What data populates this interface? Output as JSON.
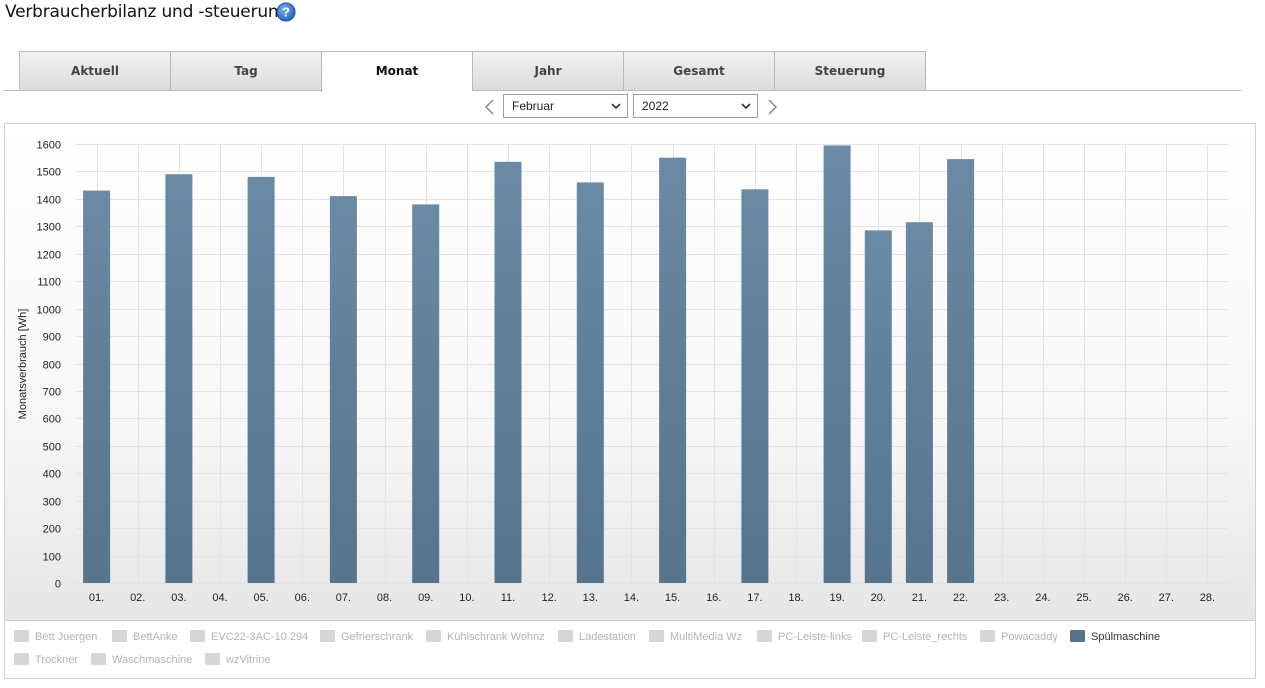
{
  "header": {
    "title": "Verbraucherbilanz und -steuerung",
    "help_icon": "question-circle-icon"
  },
  "tabs": [
    {
      "label": "Aktuell",
      "active": false
    },
    {
      "label": "Tag",
      "active": false
    },
    {
      "label": "Monat",
      "active": true
    },
    {
      "label": "Jahr",
      "active": false
    },
    {
      "label": "Gesamt",
      "active": false
    },
    {
      "label": "Steuerung",
      "active": false
    }
  ],
  "period": {
    "month": "Februar",
    "year": "2022",
    "prev_icon": "chevron-left-icon",
    "next_icon": "chevron-right-icon"
  },
  "chart_data": {
    "type": "bar",
    "ylabel": "Monatsverbrauch [Wh]",
    "ylim": [
      0,
      1600
    ],
    "yticks": [
      0,
      100,
      200,
      300,
      400,
      500,
      600,
      700,
      800,
      900,
      1000,
      1100,
      1200,
      1300,
      1400,
      1500,
      1600
    ],
    "grid": true,
    "bar_color": "#55748d",
    "categories": [
      "01.",
      "02.",
      "03.",
      "04.",
      "05.",
      "06.",
      "07.",
      "08.",
      "09.",
      "10.",
      "11.",
      "12.",
      "13.",
      "14.",
      "15.",
      "16.",
      "17.",
      "18.",
      "19.",
      "20.",
      "21.",
      "22.",
      "23.",
      "24.",
      "25.",
      "26.",
      "27.",
      "28."
    ],
    "series": [
      {
        "name": "Spülmaschine",
        "values": [
          1430,
          0,
          1490,
          0,
          1480,
          0,
          1410,
          0,
          1380,
          0,
          1535,
          0,
          1460,
          0,
          1550,
          0,
          1435,
          0,
          1595,
          1285,
          1315,
          1545,
          0,
          0,
          0,
          0,
          0,
          0
        ]
      }
    ]
  },
  "legend": {
    "items": [
      {
        "label": "Bett Juergen",
        "active": false
      },
      {
        "label": "BettAnke",
        "active": false
      },
      {
        "label": "EVC22-3AC-10 294",
        "active": false
      },
      {
        "label": "Gefrierschrank",
        "active": false
      },
      {
        "label": "Kühlschrank Wohnz",
        "active": false
      },
      {
        "label": "Ladestation",
        "active": false
      },
      {
        "label": "MultiMedia Wz",
        "active": false
      },
      {
        "label": "PC-Leiste-links",
        "active": false
      },
      {
        "label": "PC-Leiste_rechts",
        "active": false
      },
      {
        "label": "Powacaddy",
        "active": false
      },
      {
        "label": "Spülmaschine",
        "active": true
      },
      {
        "label": "Trockner",
        "active": false
      },
      {
        "label": "Waschmaschine",
        "active": false
      },
      {
        "label": "wzVitrine",
        "active": false
      }
    ]
  }
}
